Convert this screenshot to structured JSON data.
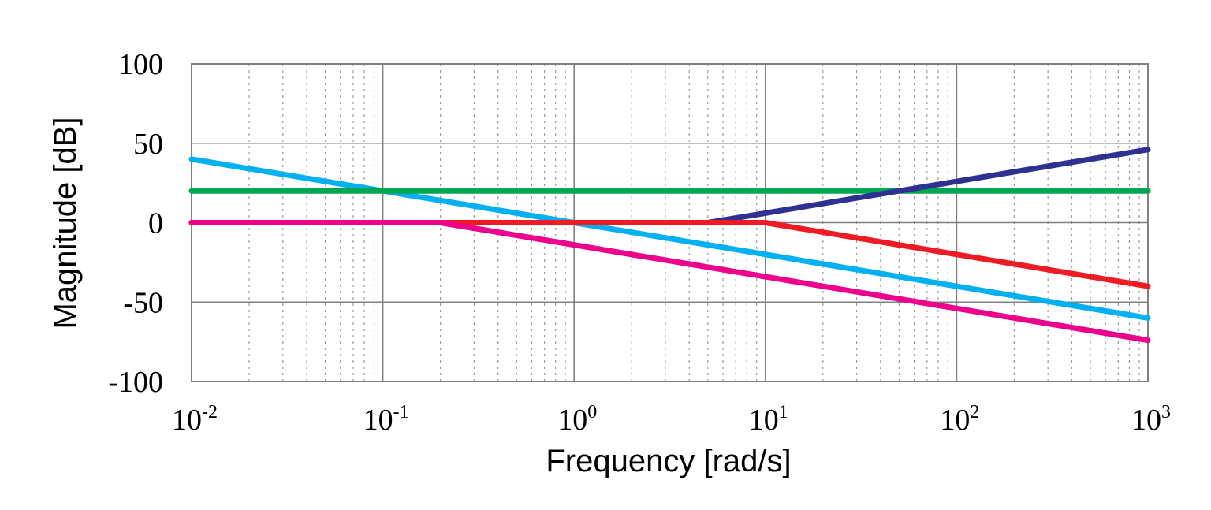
{
  "chart_data": {
    "type": "line",
    "title": "",
    "xlabel": "Frequency [rad/s]",
    "ylabel": "Magnitude [dB]",
    "x_scale": "log",
    "xlim": [
      0.01,
      1000
    ],
    "ylim": [
      -100,
      100
    ],
    "x_ticks": [
      {
        "value": 0.01,
        "base": "10",
        "exp": "-2"
      },
      {
        "value": 0.1,
        "base": "10",
        "exp": "-1"
      },
      {
        "value": 1,
        "base": "10",
        "exp": "0"
      },
      {
        "value": 10,
        "base": "10",
        "exp": "1"
      },
      {
        "value": 100,
        "base": "10",
        "exp": "2"
      },
      {
        "value": 1000,
        "base": "10",
        "exp": "3"
      }
    ],
    "y_ticks": [
      "100",
      "50",
      "0",
      "-50",
      "-100"
    ],
    "y_tick_values": [
      100,
      50,
      0,
      -50,
      -100
    ],
    "grid": {
      "major": true,
      "minor_x": true
    },
    "legend": "none",
    "series": [
      {
        "color": "#00B0F0",
        "x": [
          0.01,
          1000
        ],
        "y": [
          40,
          -60
        ]
      },
      {
        "color": "#00A651",
        "x": [
          0.01,
          1000
        ],
        "y": [
          20,
          20
        ]
      },
      {
        "color": "#2E3192",
        "x": [
          0.01,
          5,
          1000
        ],
        "y": [
          0,
          0,
          46
        ]
      },
      {
        "color": "#ED1C24",
        "x": [
          0.01,
          10,
          1000
        ],
        "y": [
          0,
          0,
          -40
        ]
      },
      {
        "color": "#EC008C",
        "x": [
          0.01,
          0.2,
          1000
        ],
        "y": [
          0,
          0,
          -74
        ]
      }
    ]
  }
}
